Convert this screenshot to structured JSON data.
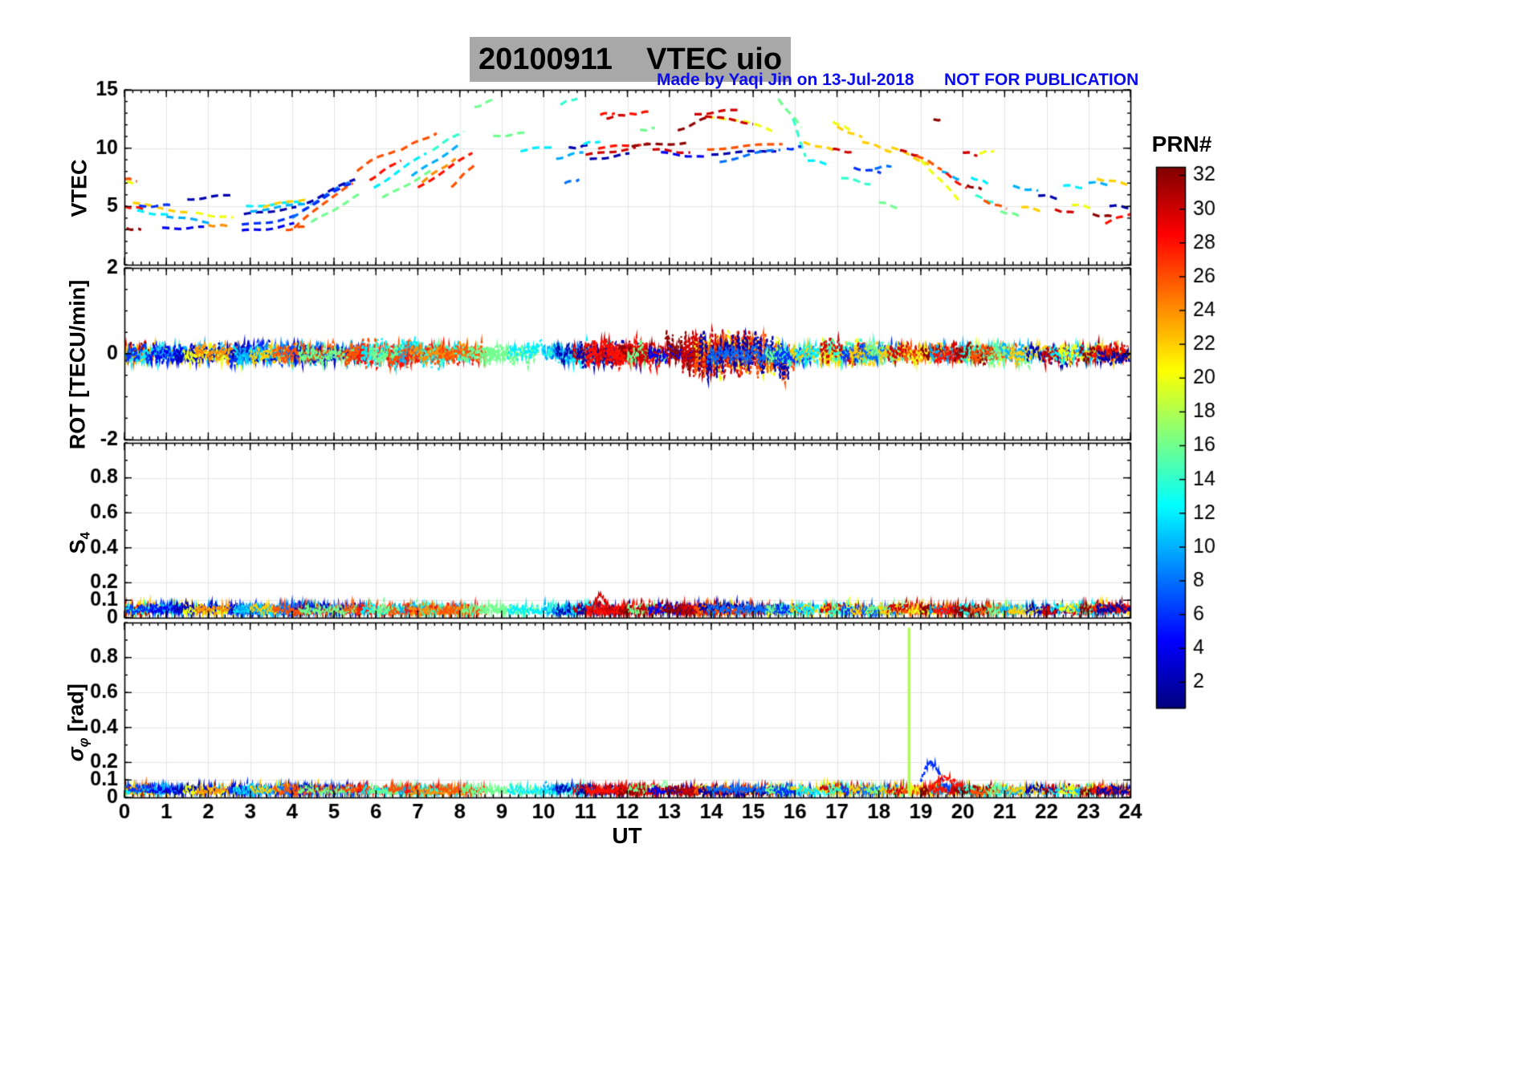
{
  "header": {
    "title": "20100911    VTEC uio",
    "credit": "Made by Yaqi Jin on 13-Jul-2018",
    "warning": "NOT FOR PUBLICATION"
  },
  "colorbar": {
    "label": "PRN#",
    "range": [
      0.5,
      32.5
    ],
    "tick_labels": [
      2,
      4,
      6,
      8,
      10,
      12,
      14,
      16,
      18,
      20,
      22,
      24,
      26,
      28,
      30,
      32
    ]
  },
  "xaxis": {
    "label": "UT",
    "lim": [
      0,
      24
    ],
    "ticks": [
      0,
      1,
      2,
      3,
      4,
      5,
      6,
      7,
      8,
      9,
      10,
      11,
      12,
      13,
      14,
      15,
      16,
      17,
      18,
      19,
      20,
      21,
      22,
      23,
      24
    ],
    "minor_step": 0.2
  },
  "panels": [
    {
      "id": "vtec",
      "ylabel": "VTEC",
      "ylim": [
        0,
        15
      ],
      "yticks": [
        5,
        10,
        15
      ],
      "minor_step": 1
    },
    {
      "id": "rot",
      "ylabel": "ROT [TECU/min]",
      "ylim": [
        -2,
        2
      ],
      "yticks": [
        -2,
        0,
        2
      ],
      "minor_step": 0.5
    },
    {
      "id": "s4",
      "ylabel_main": "S",
      "ylabel_sub": "4",
      "ylim": [
        0,
        1
      ],
      "yticks": [
        0,
        0.1,
        0.2,
        0.4,
        0.6,
        0.8
      ],
      "minor_step": 0.1
    },
    {
      "id": "sigma",
      "ylabel_main": "σ",
      "ylabel_sub": "φ",
      "ylabel_rest": " [rad]",
      "ylim": [
        0,
        1
      ],
      "yticks": [
        0,
        0.1,
        0.2,
        0.4,
        0.6,
        0.8
      ],
      "minor_step": 0.1
    }
  ],
  "chart_data": {
    "type": "line",
    "colormap": "jet",
    "series_unit": "PRN",
    "title": "20100911 VTEC uio",
    "xlabel": "UT",
    "arcs": [
      {
        "p": 26,
        "t": [
          0.0,
          0.3
        ],
        "v": [
          7.4,
          7.2
        ]
      },
      {
        "p": 20,
        "t": [
          0.05,
          0.3
        ],
        "v": [
          7.1,
          6.9
        ]
      },
      {
        "p": 28,
        "t": [
          0.0,
          0.45
        ],
        "v": [
          5.0,
          4.8
        ]
      },
      {
        "p": 32,
        "t": [
          0.05,
          0.4
        ],
        "v": [
          3.1,
          3.0
        ]
      },
      {
        "p": 22,
        "t": [
          0.2,
          1.6
        ],
        "v": [
          5.3,
          4.4
        ]
      },
      {
        "p": 12,
        "t": [
          0.3,
          1.1
        ],
        "v": [
          4.6,
          4.2
        ]
      },
      {
        "p": 6,
        "t": [
          0.35,
          1.1
        ],
        "v": [
          5.0,
          5.1
        ]
      },
      {
        "p": 10,
        "t": [
          1.0,
          2.1
        ],
        "v": [
          4.2,
          3.6
        ]
      },
      {
        "p": 4,
        "t": [
          0.9,
          1.9
        ],
        "v": [
          3.1,
          3.2
        ]
      },
      {
        "p": 2,
        "t": [
          1.5,
          2.6
        ],
        "v": [
          5.6,
          6.0
        ]
      },
      {
        "p": 20,
        "t": [
          1.7,
          2.6
        ],
        "v": [
          4.4,
          4.0
        ]
      },
      {
        "p": 24,
        "t": [
          2.0,
          2.5
        ],
        "v": [
          3.4,
          3.3
        ]
      },
      {
        "p": 4,
        "t": [
          2.8,
          4.05
        ],
        "v": [
          2.9,
          3.5
        ],
        "b": -0.1
      },
      {
        "p": 6,
        "t": [
          2.8,
          4.2
        ],
        "v": [
          3.4,
          4.3
        ],
        "b": -0.15
      },
      {
        "p": 2,
        "t": [
          2.85,
          4.1
        ],
        "v": [
          4.3,
          4.9
        ]
      },
      {
        "p": 12,
        "t": [
          2.9,
          4.3
        ],
        "v": [
          5.0,
          5.4
        ]
      },
      {
        "p": 10,
        "t": [
          3.0,
          4.45
        ],
        "v": [
          4.6,
          5.3
        ]
      },
      {
        "p": 22,
        "t": [
          3.3,
          4.4
        ],
        "v": [
          5.0,
          5.7
        ]
      },
      {
        "p": 26,
        "t": [
          3.85,
          4.35
        ],
        "v": [
          3.0,
          3.3
        ]
      },
      {
        "p": 8,
        "t": [
          4.0,
          5.5
        ],
        "v": [
          4.0,
          7.3
        ],
        "b": 0.2
      },
      {
        "p": 6,
        "t": [
          4.25,
          5.5
        ],
        "v": [
          4.7,
          7.2
        ]
      },
      {
        "p": 2,
        "t": [
          4.35,
          5.5
        ],
        "v": [
          5.3,
          7.4
        ]
      },
      {
        "p": 26,
        "t": [
          4.05,
          5.45
        ],
        "v": [
          3.1,
          6.9
        ],
        "b": 0.3
      },
      {
        "p": 16,
        "t": [
          4.45,
          5.6
        ],
        "v": [
          3.6,
          6.0
        ]
      },
      {
        "p": 26,
        "t": [
          5.55,
          6.55
        ],
        "v": [
          8.1,
          9.9
        ],
        "b": 0.2
      },
      {
        "p": 28,
        "t": [
          5.85,
          6.6
        ],
        "v": [
          7.3,
          9.0
        ]
      },
      {
        "p": 12,
        "t": [
          5.95,
          7.2
        ],
        "v": [
          6.6,
          9.6
        ]
      },
      {
        "p": 16,
        "t": [
          6.15,
          7.35
        ],
        "v": [
          5.7,
          8.1
        ]
      },
      {
        "p": 26,
        "t": [
          6.6,
          7.45
        ],
        "v": [
          9.9,
          11.3
        ]
      },
      {
        "p": 10,
        "t": [
          6.85,
          8.0
        ],
        "v": [
          7.6,
          10.3
        ]
      },
      {
        "p": 28,
        "t": [
          7.0,
          8.3
        ],
        "v": [
          6.6,
          9.6
        ]
      },
      {
        "p": 14,
        "t": [
          7.35,
          8.1
        ],
        "v": [
          9.9,
          11.5
        ]
      },
      {
        "p": 24,
        "t": [
          7.1,
          7.9
        ],
        "v": [
          7.1,
          9.1
        ]
      },
      {
        "p": 26,
        "t": [
          7.8,
          8.35
        ],
        "v": [
          6.7,
          8.6
        ]
      },
      {
        "p": 16,
        "t": [
          8.35,
          8.85
        ],
        "v": [
          13.5,
          14.2
        ]
      },
      {
        "p": 16,
        "t": [
          8.8,
          9.6
        ],
        "v": [
          11.0,
          11.3
        ]
      },
      {
        "p": 12,
        "t": [
          9.45,
          10.3
        ],
        "v": [
          9.8,
          10.2
        ]
      },
      {
        "p": 10,
        "t": [
          10.3,
          10.95
        ],
        "v": [
          9.1,
          9.7
        ]
      },
      {
        "p": 14,
        "t": [
          10.4,
          10.8
        ],
        "v": [
          13.8,
          14.3
        ]
      },
      {
        "p": 8,
        "t": [
          10.5,
          10.85
        ],
        "v": [
          7.0,
          7.3
        ]
      },
      {
        "p": 2,
        "t": [
          10.6,
          11.05
        ],
        "v": [
          10.0,
          10.2
        ]
      },
      {
        "p": 12,
        "t": [
          10.95,
          11.35
        ],
        "v": [
          10.4,
          10.6
        ]
      },
      {
        "p": 30,
        "t": [
          11.0,
          12.2
        ],
        "v": [
          9.4,
          10.0
        ]
      },
      {
        "p": 2,
        "t": [
          11.1,
          12.05
        ],
        "v": [
          9.0,
          9.5
        ]
      },
      {
        "p": 28,
        "t": [
          11.3,
          12.5
        ],
        "v": [
          10.0,
          10.4
        ]
      },
      {
        "p": 30,
        "t": [
          11.5,
          12.05
        ],
        "v": [
          12.6,
          12.9
        ]
      },
      {
        "p": 28,
        "t": [
          11.35,
          11.7
        ],
        "v": [
          12.9,
          13.0
        ]
      },
      {
        "p": 28,
        "t": [
          12.05,
          12.5
        ],
        "v": [
          12.9,
          13.1
        ]
      },
      {
        "p": 32,
        "t": [
          12.1,
          13.4
        ],
        "v": [
          10.2,
          10.45
        ]
      },
      {
        "p": 16,
        "t": [
          12.3,
          12.65
        ],
        "v": [
          11.5,
          11.7
        ]
      },
      {
        "p": 30,
        "t": [
          12.6,
          13.5
        ],
        "v": [
          9.9,
          9.6
        ]
      },
      {
        "p": 4,
        "t": [
          12.8,
          13.85
        ],
        "v": [
          9.6,
          9.2
        ]
      },
      {
        "p": 32,
        "t": [
          13.2,
          13.95
        ],
        "v": [
          11.5,
          12.7
        ]
      },
      {
        "p": 30,
        "t": [
          13.6,
          14.65
        ],
        "v": [
          12.9,
          13.3
        ]
      },
      {
        "p": 20,
        "t": [
          13.9,
          15.45
        ],
        "v": [
          12.7,
          11.5
        ],
        "b": 0.25
      },
      {
        "p": 30,
        "t": [
          13.85,
          15.0
        ],
        "v": [
          12.8,
          12.1
        ]
      },
      {
        "p": 26,
        "t": [
          13.9,
          15.7
        ],
        "v": [
          9.9,
          10.4
        ]
      },
      {
        "p": 2,
        "t": [
          14.0,
          15.55
        ],
        "v": [
          9.5,
          9.8
        ]
      },
      {
        "p": 8,
        "t": [
          14.2,
          15.65
        ],
        "v": [
          8.8,
          9.9
        ],
        "b": 0.1
      },
      {
        "p": 16,
        "t": [
          15.6,
          16.15
        ],
        "v": [
          14.2,
          11.8
        ]
      },
      {
        "p": 14,
        "t": [
          15.95,
          16.25
        ],
        "v": [
          12.5,
          9.2
        ]
      },
      {
        "p": 6,
        "t": [
          15.8,
          16.15
        ],
        "v": [
          9.9,
          10.1
        ]
      },
      {
        "p": 22,
        "t": [
          16.2,
          16.95
        ],
        "v": [
          10.5,
          9.8
        ]
      },
      {
        "p": 12,
        "t": [
          16.3,
          16.85
        ],
        "v": [
          9.0,
          8.6
        ]
      },
      {
        "p": 20,
        "t": [
          16.9,
          17.35
        ],
        "v": [
          12.3,
          11.5
        ]
      },
      {
        "p": 22,
        "t": [
          17.0,
          17.6
        ],
        "v": [
          11.8,
          10.9
        ]
      },
      {
        "p": 30,
        "t": [
          16.9,
          17.45
        ],
        "v": [
          9.9,
          9.6
        ]
      },
      {
        "p": 14,
        "t": [
          17.1,
          17.8
        ],
        "v": [
          7.5,
          6.9
        ]
      },
      {
        "p": 6,
        "t": [
          17.4,
          18.05
        ],
        "v": [
          8.3,
          7.9
        ]
      },
      {
        "p": 22,
        "t": [
          17.6,
          18.3
        ],
        "v": [
          10.6,
          9.7
        ]
      },
      {
        "p": 8,
        "t": [
          17.9,
          18.3
        ],
        "v": [
          8.3,
          8.5
        ]
      },
      {
        "p": 16,
        "t": [
          18.0,
          18.45
        ],
        "v": [
          5.4,
          4.9
        ]
      },
      {
        "p": 22,
        "t": [
          18.3,
          19.2
        ],
        "v": [
          10.1,
          8.6
        ]
      },
      {
        "p": 30,
        "t": [
          18.5,
          19.0
        ],
        "v": [
          9.8,
          9.3
        ]
      },
      {
        "p": 26,
        "t": [
          18.9,
          19.5
        ],
        "v": [
          9.4,
          8.2
        ]
      },
      {
        "p": 20,
        "t": [
          19.0,
          19.9
        ],
        "v": [
          9.0,
          5.6
        ]
      },
      {
        "p": 32,
        "t": [
          19.3,
          19.55
        ],
        "v": [
          12.4,
          12.5
        ]
      },
      {
        "p": 10,
        "t": [
          19.5,
          20.0
        ],
        "v": [
          8.0,
          7.2
        ]
      },
      {
        "p": 28,
        "t": [
          19.6,
          20.1
        ],
        "v": [
          7.8,
          6.5
        ]
      },
      {
        "p": 30,
        "t": [
          20.0,
          20.35
        ],
        "v": [
          9.7,
          9.4
        ]
      },
      {
        "p": 20,
        "t": [
          20.4,
          20.75
        ],
        "v": [
          9.6,
          9.8
        ]
      },
      {
        "p": 12,
        "t": [
          20.2,
          20.6
        ],
        "v": [
          7.5,
          7.0
        ]
      },
      {
        "p": 14,
        "t": [
          20.3,
          20.85
        ],
        "v": [
          5.9,
          5.2
        ]
      },
      {
        "p": 32,
        "t": [
          20.1,
          20.45
        ],
        "v": [
          6.8,
          6.5
        ]
      },
      {
        "p": 26,
        "t": [
          20.5,
          21.05
        ],
        "v": [
          5.5,
          4.8
        ]
      },
      {
        "p": 16,
        "t": [
          20.9,
          21.35
        ],
        "v": [
          4.6,
          4.2
        ]
      },
      {
        "p": 10,
        "t": [
          21.2,
          21.8
        ],
        "v": [
          6.7,
          6.3
        ]
      },
      {
        "p": 22,
        "t": [
          21.4,
          21.95
        ],
        "v": [
          5.0,
          4.6
        ]
      },
      {
        "p": 2,
        "t": [
          21.8,
          22.3
        ],
        "v": [
          6.0,
          5.7
        ]
      },
      {
        "p": 30,
        "t": [
          22.2,
          22.7
        ],
        "v": [
          4.7,
          4.4
        ]
      },
      {
        "p": 12,
        "t": [
          22.4,
          22.95
        ],
        "v": [
          6.8,
          6.6
        ]
      },
      {
        "p": 20,
        "t": [
          22.6,
          23.1
        ],
        "v": [
          5.2,
          4.9
        ]
      },
      {
        "p": 10,
        "t": [
          23.0,
          23.5
        ],
        "v": [
          7.1,
          6.9
        ]
      },
      {
        "p": 22,
        "t": [
          23.2,
          23.95
        ],
        "v": [
          7.4,
          6.9
        ]
      },
      {
        "p": 32,
        "t": [
          23.1,
          23.6
        ],
        "v": [
          4.3,
          4.1
        ]
      },
      {
        "p": 28,
        "t": [
          23.4,
          24.0
        ],
        "v": [
          3.6,
          4.4
        ]
      },
      {
        "p": 2,
        "t": [
          23.5,
          24.0
        ],
        "v": [
          5.1,
          4.9
        ]
      }
    ],
    "rot_noise": {
      "amp": 0.22,
      "overrides": [
        {
          "t": [
            13.4,
            14.8
          ],
          "amp": 0.5
        },
        {
          "t": [
            5.4,
            6.6
          ],
          "amp": 0.33
        },
        {
          "t": [
            16.8,
            17.6
          ],
          "amp": 0.3
        },
        {
          "t": [
            11.0,
            12.3
          ],
          "amp": 0.3
        }
      ]
    },
    "s4_noise": {
      "base": 0.02,
      "amp": 0.06,
      "events": [
        {
          "type": "bump",
          "peak": 0.13,
          "center": 11.35,
          "sigma": 0.1,
          "range": [
            11.1,
            11.65
          ],
          "prn": 30
        }
      ]
    },
    "sigma_noise": {
      "base": 0.02,
      "amp": 0.05,
      "events": [
        {
          "type": "spike",
          "t": 18.72,
          "top": 0.97,
          "prn": 18
        },
        {
          "type": "bump",
          "peak": 0.2,
          "center": 19.25,
          "sigma": 0.18,
          "range": [
            19.0,
            19.7
          ],
          "prn": 6
        },
        {
          "type": "bump",
          "peak": 0.11,
          "center": 19.6,
          "sigma": 0.25,
          "range": [
            19.2,
            20.0
          ],
          "prn": 28
        }
      ]
    }
  }
}
